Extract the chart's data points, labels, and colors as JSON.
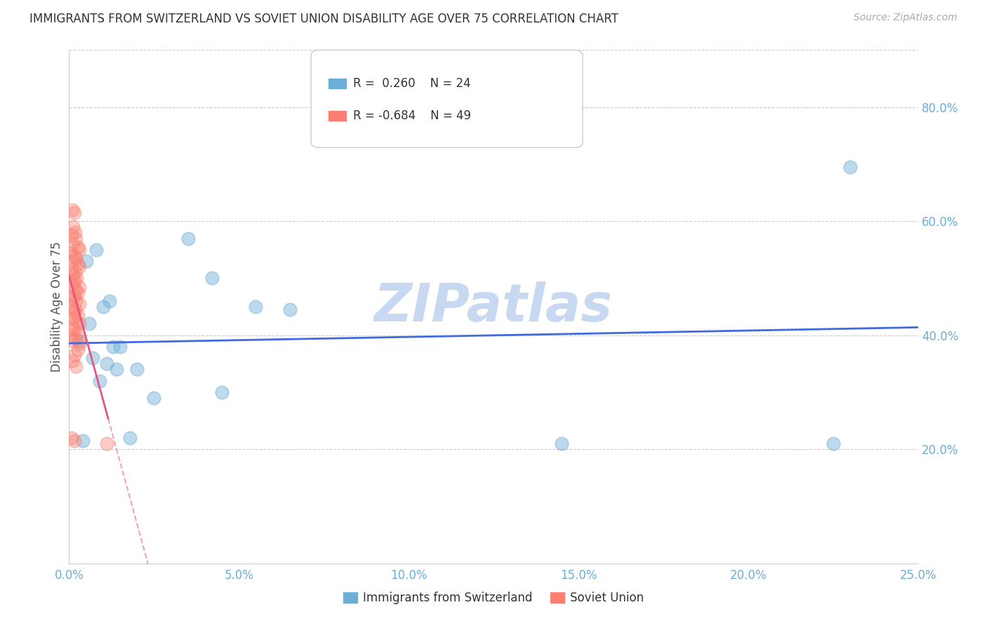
{
  "title": "IMMIGRANTS FROM SWITZERLAND VS SOVIET UNION DISABILITY AGE OVER 75 CORRELATION CHART",
  "source": "Source: ZipAtlas.com",
  "ylabel": "Disability Age Over 75",
  "x_ticks": [
    0.0,
    5.0,
    10.0,
    15.0,
    20.0,
    25.0
  ],
  "y_ticks_right": [
    20.0,
    40.0,
    60.0,
    80.0
  ],
  "xlim": [
    0.0,
    25.0
  ],
  "ylim": [
    0.0,
    90.0
  ],
  "legend_entries": [
    {
      "color": "#7ab0e0",
      "label": "Immigrants from Switzerland",
      "R": "0.260",
      "N": "24"
    },
    {
      "color": "#f08080",
      "label": "Soviet Union",
      "R": "-0.684",
      "N": "49"
    }
  ],
  "switzerland_points": [
    [
      0.5,
      53.0
    ],
    [
      0.8,
      55.0
    ],
    [
      1.0,
      45.0
    ],
    [
      1.2,
      46.0
    ],
    [
      0.6,
      42.0
    ],
    [
      1.5,
      38.0
    ],
    [
      1.3,
      38.0
    ],
    [
      0.7,
      36.0
    ],
    [
      1.1,
      35.0
    ],
    [
      1.4,
      34.0
    ],
    [
      2.0,
      34.0
    ],
    [
      3.5,
      57.0
    ],
    [
      4.2,
      50.0
    ],
    [
      5.5,
      45.0
    ],
    [
      6.5,
      44.5
    ],
    [
      0.3,
      39.0
    ],
    [
      0.9,
      32.0
    ],
    [
      2.5,
      29.0
    ],
    [
      4.5,
      30.0
    ],
    [
      1.8,
      22.0
    ],
    [
      0.4,
      21.5
    ],
    [
      14.5,
      21.0
    ],
    [
      22.5,
      21.0
    ],
    [
      23.0,
      69.5
    ]
  ],
  "soviet_points": [
    [
      0.1,
      62.0
    ],
    [
      0.15,
      61.5
    ],
    [
      0.12,
      59.0
    ],
    [
      0.18,
      58.0
    ],
    [
      0.08,
      57.5
    ],
    [
      0.2,
      57.0
    ],
    [
      0.1,
      56.0
    ],
    [
      0.25,
      55.5
    ],
    [
      0.3,
      55.0
    ],
    [
      0.05,
      54.5
    ],
    [
      0.15,
      54.0
    ],
    [
      0.2,
      53.5
    ],
    [
      0.1,
      53.0
    ],
    [
      0.25,
      52.5
    ],
    [
      0.3,
      52.0
    ],
    [
      0.08,
      51.5
    ],
    [
      0.18,
      51.0
    ],
    [
      0.12,
      50.5
    ],
    [
      0.22,
      50.0
    ],
    [
      0.15,
      49.5
    ],
    [
      0.1,
      49.0
    ],
    [
      0.3,
      48.5
    ],
    [
      0.2,
      48.0
    ],
    [
      0.25,
      47.5
    ],
    [
      0.15,
      47.0
    ],
    [
      0.1,
      46.5
    ],
    [
      0.2,
      46.0
    ],
    [
      0.3,
      45.5
    ],
    [
      0.08,
      45.0
    ],
    [
      0.18,
      44.5
    ],
    [
      0.15,
      44.0
    ],
    [
      0.25,
      43.5
    ],
    [
      0.12,
      43.0
    ],
    [
      0.2,
      42.5
    ],
    [
      0.3,
      42.0
    ],
    [
      0.1,
      41.5
    ],
    [
      0.15,
      41.0
    ],
    [
      0.25,
      40.5
    ],
    [
      0.08,
      40.0
    ],
    [
      0.2,
      39.5
    ],
    [
      0.12,
      39.0
    ],
    [
      0.3,
      38.5
    ],
    [
      0.25,
      37.5
    ],
    [
      0.15,
      36.5
    ],
    [
      0.1,
      35.5
    ],
    [
      0.2,
      34.5
    ],
    [
      0.08,
      22.0
    ],
    [
      0.15,
      21.5
    ],
    [
      1.1,
      21.0
    ]
  ],
  "switzerland_color": "#6baed6",
  "soviet_color": "#fa8072",
  "regression_switzerland_color": "#4169e1",
  "regression_soviet_color": "#e75480",
  "background_color": "#ffffff",
  "grid_color": "#cccccc",
  "title_color": "#333333",
  "axis_color": "#6baed6",
  "watermark": "ZIPatlas",
  "watermark_color": "#c8d8f0"
}
